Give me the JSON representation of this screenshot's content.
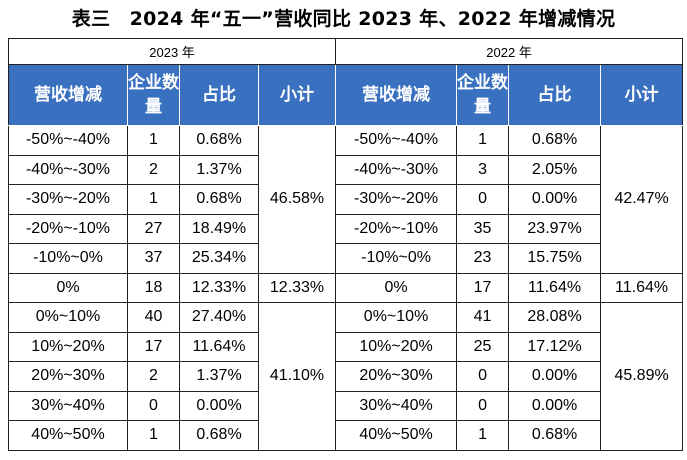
{
  "title": "表三　2024 年“五一”营收同比 2023 年、2022 年增减情况",
  "year_left": "2023 年",
  "year_right": "2022 年",
  "headers": {
    "range": "营收增减",
    "count": "企业数量",
    "pct": "占比",
    "subtotal": "小计"
  },
  "rows_2023": [
    {
      "range": "-50%~-40%",
      "count": "1",
      "pct": "0.68%"
    },
    {
      "range": "-40%~-30%",
      "count": "2",
      "pct": "1.37%"
    },
    {
      "range": "-30%~-20%",
      "count": "1",
      "pct": "0.68%"
    },
    {
      "range": "-20%~-10%",
      "count": "27",
      "pct": "18.49%"
    },
    {
      "range": "-10%~0%",
      "count": "37",
      "pct": "25.34%"
    },
    {
      "range": "0%",
      "count": "18",
      "pct": "12.33%"
    },
    {
      "range": "0%~10%",
      "count": "40",
      "pct": "27.40%"
    },
    {
      "range": "10%~20%",
      "count": "17",
      "pct": "11.64%"
    },
    {
      "range": "20%~30%",
      "count": "2",
      "pct": "1.37%"
    },
    {
      "range": "30%~40%",
      "count": "0",
      "pct": "0.00%"
    },
    {
      "range": "40%~50%",
      "count": "1",
      "pct": "0.68%"
    }
  ],
  "subtotals_2023": [
    "46.58%",
    "12.33%",
    "41.10%"
  ],
  "rows_2022": [
    {
      "range": "-50%~-40%",
      "count": "1",
      "pct": "0.68%"
    },
    {
      "range": "-40%~-30%",
      "count": "3",
      "pct": "2.05%"
    },
    {
      "range": "-30%~-20%",
      "count": "0",
      "pct": "0.00%"
    },
    {
      "range": "-20%~-10%",
      "count": "35",
      "pct": "23.97%"
    },
    {
      "range": "-10%~0%",
      "count": "23",
      "pct": "15.75%"
    },
    {
      "range": "0%",
      "count": "17",
      "pct": "11.64%"
    },
    {
      "range": "0%~10%",
      "count": "41",
      "pct": "28.08%"
    },
    {
      "range": "10%~20%",
      "count": "25",
      "pct": "17.12%"
    },
    {
      "range": "20%~30%",
      "count": "0",
      "pct": "0.00%"
    },
    {
      "range": "30%~40%",
      "count": "0",
      "pct": "0.00%"
    },
    {
      "range": "40%~50%",
      "count": "1",
      "pct": "0.68%"
    }
  ],
  "subtotals_2022": [
    "42.47%",
    "11.64%",
    "45.89%"
  ]
}
